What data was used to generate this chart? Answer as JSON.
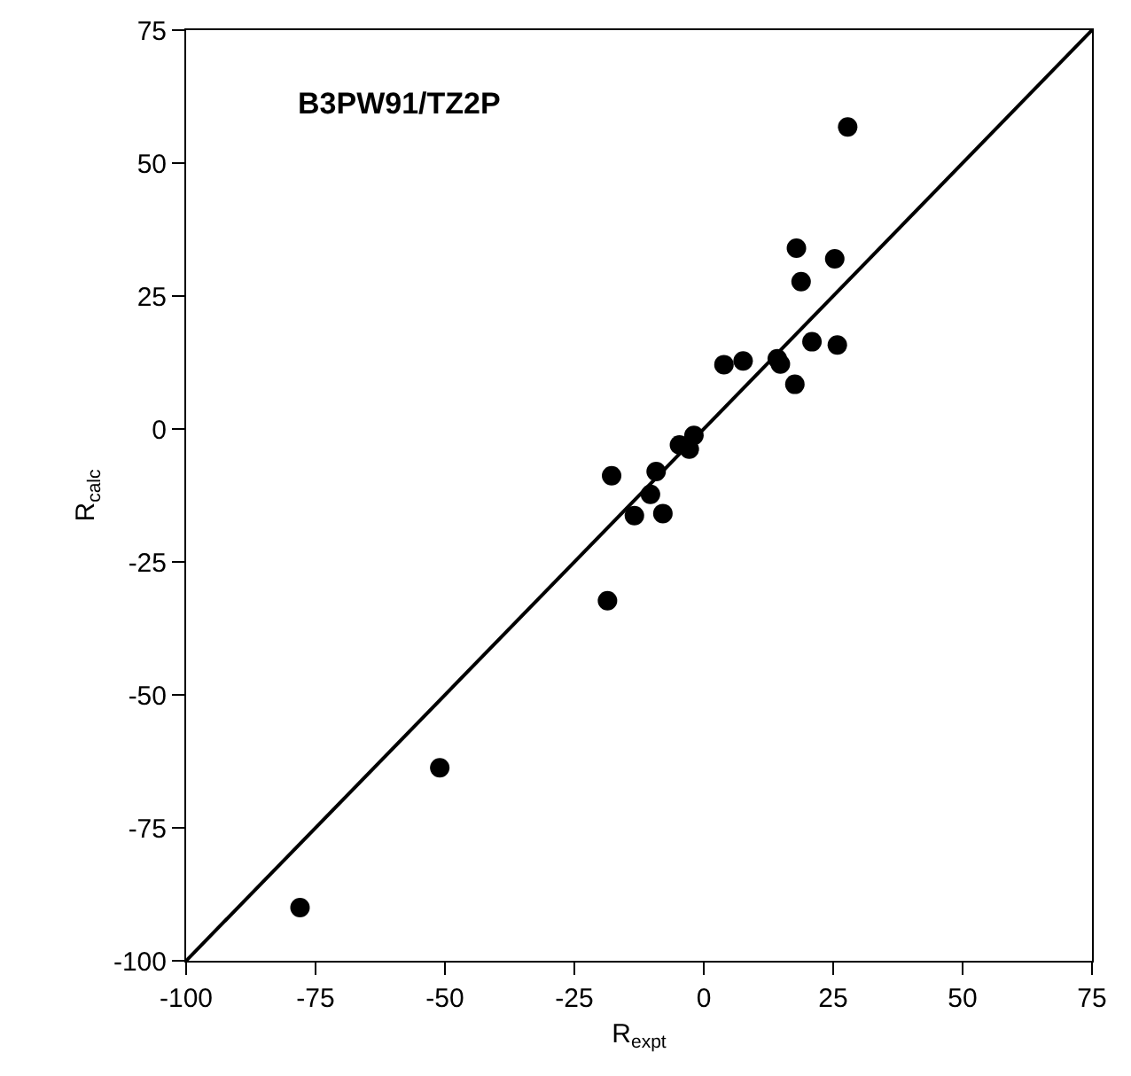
{
  "chart_data": {
    "type": "scatter",
    "xlabel": "R$_{expt}$",
    "ylabel": "R$_{calc}$",
    "annotations": [
      "B3PW91/TZ2P"
    ],
    "xlim": [
      -100,
      75
    ],
    "xticks": [
      -100,
      -75,
      -50,
      -25,
      0,
      25,
      50,
      75
    ],
    "ylim": [
      -100,
      75
    ],
    "yticks": [
      -100,
      -75,
      -50,
      -25,
      0,
      25,
      50,
      75
    ],
    "grid": false,
    "marker": "circle",
    "series": [
      {
        "color": "#000000",
        "x": [
          -78,
          -51,
          -18.6,
          -17.8,
          -13.4,
          -10.3,
          -9.2,
          -7.9,
          -4.7,
          -2.8,
          -1.9,
          3.9,
          7.6,
          14.2,
          14.8,
          17.6,
          17.9,
          18.8,
          20.9,
          25.3,
          25.8,
          27.8
        ],
        "values": [
          -90,
          -63.7,
          -32.3,
          -8.8,
          -16.3,
          -12.3,
          -8,
          -15.9,
          -3,
          -3.8,
          -1.2,
          12.1,
          12.8,
          13.2,
          12.2,
          8.4,
          34,
          27.7,
          16.4,
          32,
          15.8,
          56.8
        ]
      },
      {
        "type": "line",
        "color": "#000000",
        "x": [
          -100,
          75
        ],
        "values": [
          -100,
          75
        ],
        "marker": "none",
        "line_style": "solid"
      }
    ]
  }
}
